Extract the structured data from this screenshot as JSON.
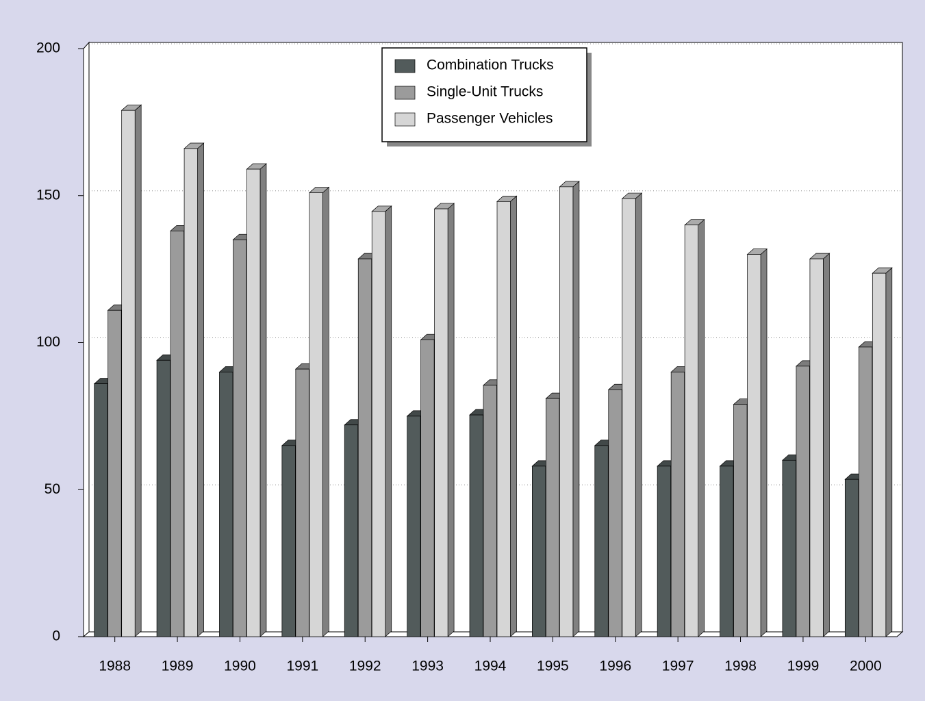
{
  "chart_data": {
    "type": "bar3d",
    "categories": [
      "1988",
      "1989",
      "1990",
      "1991",
      "1992",
      "1993",
      "1994",
      "1995",
      "1996",
      "1997",
      "1998",
      "1999",
      "2000"
    ],
    "series": [
      {
        "name": "Combination Trucks",
        "color": "#525b5b",
        "values": [
          86,
          94,
          90,
          65,
          72,
          75,
          75.4,
          58,
          65,
          58,
          58,
          60,
          53.5
        ]
      },
      {
        "name": "Single-Unit Trucks",
        "color": "#9b9b9b",
        "values": [
          111,
          138,
          135,
          91,
          128.5,
          101,
          85.5,
          81,
          84,
          90,
          79,
          92,
          98.5
        ]
      },
      {
        "name": "Passenger Vehicles",
        "color": "#d6d6d6",
        "values": [
          179,
          166,
          159,
          151,
          144.6,
          145.5,
          148,
          153,
          149,
          140,
          130,
          128.5,
          123.6
        ]
      }
    ],
    "ylim": [
      0,
      200
    ],
    "yticks": [
      0,
      50,
      100,
      150,
      200
    ],
    "grid": true
  }
}
